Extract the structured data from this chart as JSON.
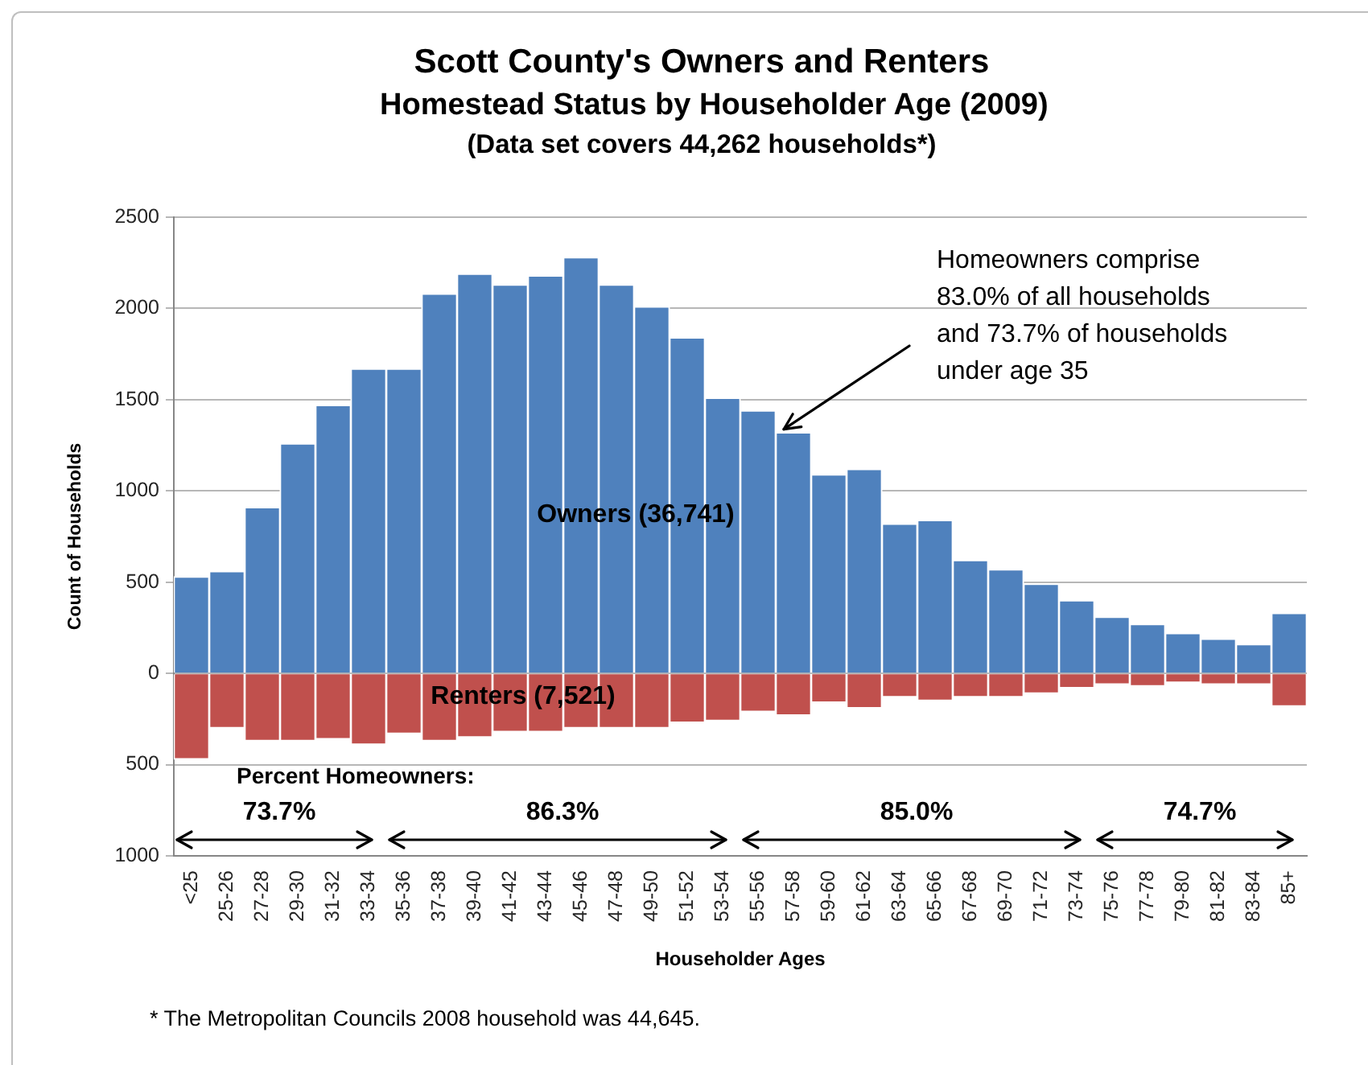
{
  "chart_data": {
    "type": "bar",
    "title": "Scott County's Owners and Renters",
    "subtitle": "Homestead Status by Householder Age (2009)\n(Data set covers 44,262 households*)",
    "xlabel": "Householder Ages",
    "ylabel": "Count of Households",
    "categories": [
      "<25",
      "25-26",
      "27-28",
      "29-30",
      "31-32",
      "33-34",
      "35-36",
      "37-38",
      "39-40",
      "41-42",
      "43-44",
      "45-46",
      "47-48",
      "49-50",
      "51-52",
      "53-54",
      "55-56",
      "57-58",
      "59-60",
      "61-62",
      "63-64",
      "65-66",
      "67-68",
      "69-70",
      "71-72",
      "73-74",
      "75-76",
      "77-78",
      "79-80",
      "81-82",
      "83-84",
      "85+"
    ],
    "series": [
      {
        "name": "Owners (36,741)",
        "color": "#4f81bd",
        "values": [
          530,
          560,
          910,
          1260,
          1470,
          1670,
          1670,
          2080,
          2190,
          2130,
          2180,
          2280,
          2130,
          2010,
          1840,
          1510,
          1440,
          1320,
          1090,
          1120,
          820,
          840,
          620,
          570,
          490,
          400,
          310,
          270,
          220,
          190,
          160,
          330
        ]
      },
      {
        "name": "Renters (7,521)",
        "color": "#c0504d",
        "values": [
          -470,
          -300,
          -370,
          -370,
          -360,
          -390,
          -330,
          -370,
          -350,
          -320,
          -320,
          -300,
          -300,
          -300,
          -270,
          -260,
          -210,
          -230,
          -160,
          -190,
          -130,
          -150,
          -130,
          -130,
          -110,
          -80,
          -60,
          -70,
          -50,
          -60,
          -60,
          -180
        ]
      }
    ],
    "stacked": true,
    "ylim": [
      -1000,
      2500
    ],
    "yticks": [
      {
        "value": -1000,
        "label": "1000"
      },
      {
        "value": -500,
        "label": "500"
      },
      0,
      500,
      1000,
      1500,
      2000,
      2500
    ],
    "grid": "y",
    "annotations": [
      "Percent Homeowners:",
      "73.7%",
      "86.3%",
      "85.0%",
      "74.7%",
      {
        "text": "Homeowners comprise\n83.0% of all households\nand 73.7% of households\nunder age 35",
        "x": "57-58",
        "y": 1320
      },
      "* The Metropolitan Councils 2008 household was 44,645."
    ]
  }
}
